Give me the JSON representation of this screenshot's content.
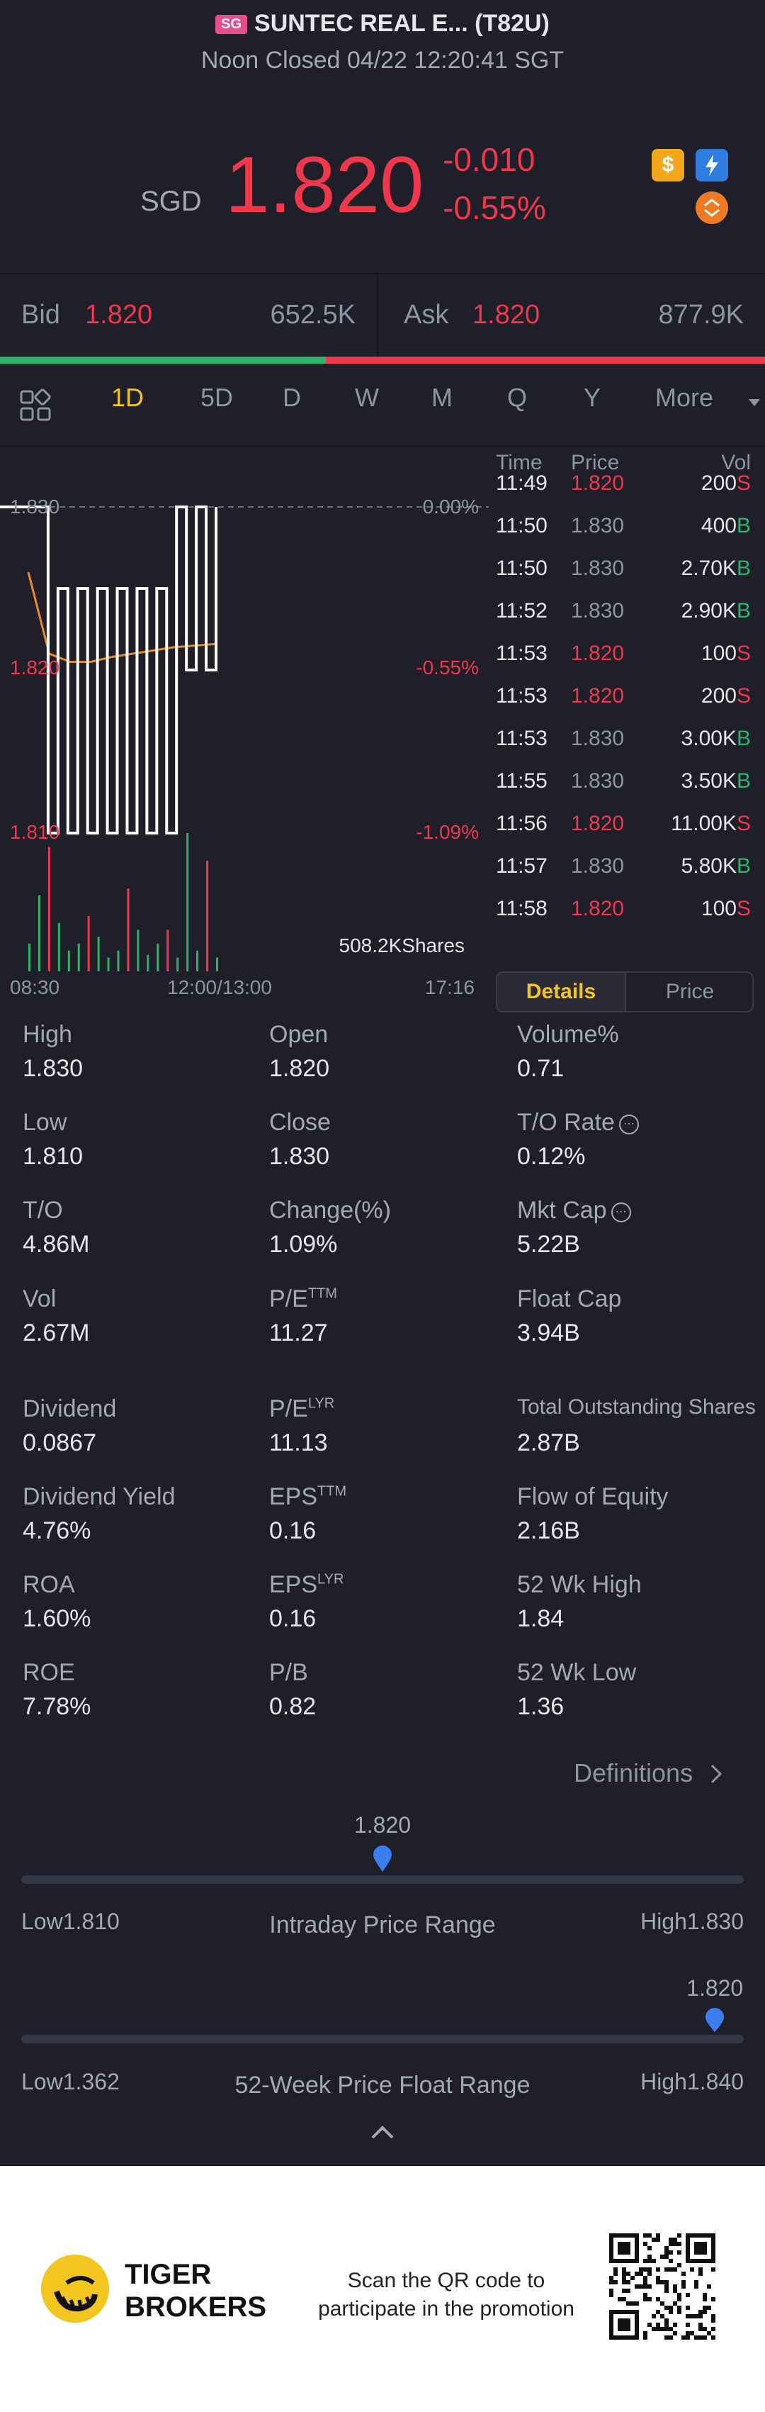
{
  "header": {
    "market_badge": "SG",
    "title": "SUNTEC REAL E... (T82U)",
    "status": "Noon Closed 04/22 12:20:41 SGT"
  },
  "quote": {
    "currency": "SGD",
    "price": "1.820",
    "change": "-0.010",
    "change_pct": "-0.55%",
    "badges": [
      "dollar-icon",
      "flash-icon",
      "swap-icon"
    ],
    "accent_red": "#f2364c",
    "accent_green": "#2fb36b"
  },
  "bid_ask": {
    "bid_label": "Bid",
    "bid_price": "1.820",
    "bid_size": "652.5K",
    "ask_label": "Ask",
    "ask_price": "1.820",
    "ask_size": "877.9K",
    "bid_ratio": 0.426
  },
  "tabs": [
    "1D",
    "5D",
    "D",
    "W",
    "M",
    "Q",
    "Y",
    "More"
  ],
  "active_tab": "1D",
  "chart": {
    "y_labels": [
      {
        "left": "1.830",
        "right": "0.00%",
        "color": "grey"
      },
      {
        "left": "1.820",
        "right": "-0.55%",
        "color": "red"
      },
      {
        "left": "1.810",
        "right": "-1.09%",
        "color": "red"
      }
    ],
    "x_labels": [
      "08:30",
      "12:00/13:00",
      "17:16"
    ],
    "volume_label": "508.2KShares"
  },
  "chart_data": {
    "type": "line",
    "title": "",
    "ylim": [
      1.81,
      1.83
    ],
    "x_range": [
      "08:30",
      "17:16"
    ],
    "series": [
      {
        "values": [
          1.83,
          1.83,
          1.81,
          1.825,
          1.81,
          1.825,
          1.81,
          1.825,
          1.81,
          1.825,
          1.81,
          1.825,
          1.81,
          1.825,
          1.81,
          1.83,
          1.82,
          1.83,
          1.82,
          1.83
        ]
      }
    ],
    "avg_line": [
      1.826,
      1.821,
      1.8205,
      1.8205,
      1.8208,
      1.821,
      1.8212,
      1.8214,
      1.8215,
      1.8216
    ],
    "volume_bars": [
      0.2,
      0.55,
      0.9,
      0.35,
      0.15,
      0.2,
      0.4,
      0.25,
      0.1,
      0.15,
      0.6,
      0.3,
      0.12,
      0.2,
      0.3,
      0.1,
      1.0,
      0.15,
      0.8,
      0.1
    ]
  },
  "trades": {
    "headers": [
      "Time",
      "Price",
      "Vol"
    ],
    "rows": [
      {
        "time": "11:49",
        "price": "1.820",
        "vol": "200",
        "side": "S"
      },
      {
        "time": "11:50",
        "price": "1.830",
        "vol": "400",
        "side": "B"
      },
      {
        "time": "11:50",
        "price": "1.830",
        "vol": "2.70K",
        "side": "B"
      },
      {
        "time": "11:52",
        "price": "1.830",
        "vol": "2.90K",
        "side": "B"
      },
      {
        "time": "11:53",
        "price": "1.820",
        "vol": "100",
        "side": "S"
      },
      {
        "time": "11:53",
        "price": "1.820",
        "vol": "200",
        "side": "S"
      },
      {
        "time": "11:53",
        "price": "1.830",
        "vol": "3.00K",
        "side": "B"
      },
      {
        "time": "11:55",
        "price": "1.830",
        "vol": "3.50K",
        "side": "B"
      },
      {
        "time": "11:56",
        "price": "1.820",
        "vol": "11.00K",
        "side": "S"
      },
      {
        "time": "11:57",
        "price": "1.830",
        "vol": "5.80K",
        "side": "B"
      },
      {
        "time": "11:58",
        "price": "1.820",
        "vol": "100",
        "side": "S"
      }
    ],
    "tab_details": "Details",
    "tab_price": "Price"
  },
  "stats": [
    {
      "label": "High",
      "value": "1.830"
    },
    {
      "label": "Open",
      "value": "1.820"
    },
    {
      "label": "Volume%",
      "value": "0.71"
    },
    {
      "label": "Low",
      "value": "1.810"
    },
    {
      "label": "Close",
      "value": "1.830"
    },
    {
      "label": "T/O Rate",
      "value": "0.12%",
      "info": true
    },
    {
      "label": "T/O",
      "value": "4.86M"
    },
    {
      "label": "Change(%)",
      "value": "1.09%"
    },
    {
      "label": "Mkt Cap",
      "value": "5.22B",
      "info": true
    },
    {
      "label": "Vol",
      "value": "2.67M"
    },
    {
      "label": "P/E",
      "sup": "TTM",
      "value": "11.27"
    },
    {
      "label": "Float Cap",
      "value": "3.94B"
    },
    {
      "label": "Dividend",
      "value": "0.0867"
    },
    {
      "label": "P/E",
      "sup": "LYR",
      "value": "11.13"
    },
    {
      "label": "Total Outstanding Shares",
      "value": "2.87B"
    },
    {
      "label": "Dividend Yield",
      "value": "4.76%"
    },
    {
      "label": "EPS",
      "sup": "TTM",
      "value": "0.16"
    },
    {
      "label": "Flow of Equity",
      "value": "2.16B"
    },
    {
      "label": "ROA",
      "value": "1.60%"
    },
    {
      "label": "EPS",
      "sup": "LYR",
      "value": "0.16"
    },
    {
      "label": "52 Wk High",
      "value": "1.84"
    },
    {
      "label": "ROE",
      "value": "7.78%"
    },
    {
      "label": "P/B",
      "value": "0.82"
    },
    {
      "label": "52 Wk Low",
      "value": "1.36"
    }
  ],
  "definitions": "Definitions",
  "ranges": {
    "intraday": {
      "current": "1.820",
      "low": "Low1.810",
      "high": "High1.830",
      "title": "Intraday Price Range",
      "position": 0.5
    },
    "week52": {
      "current": "1.820",
      "low": "Low1.362",
      "high": "High1.840",
      "title": "52-Week Price Float Range",
      "position": 0.96
    }
  },
  "footer": {
    "brand_line1": "TIGER",
    "brand_line2": "BROKERS",
    "scan_line1": "Scan the QR code to",
    "scan_line2": "participate in the promotion"
  }
}
